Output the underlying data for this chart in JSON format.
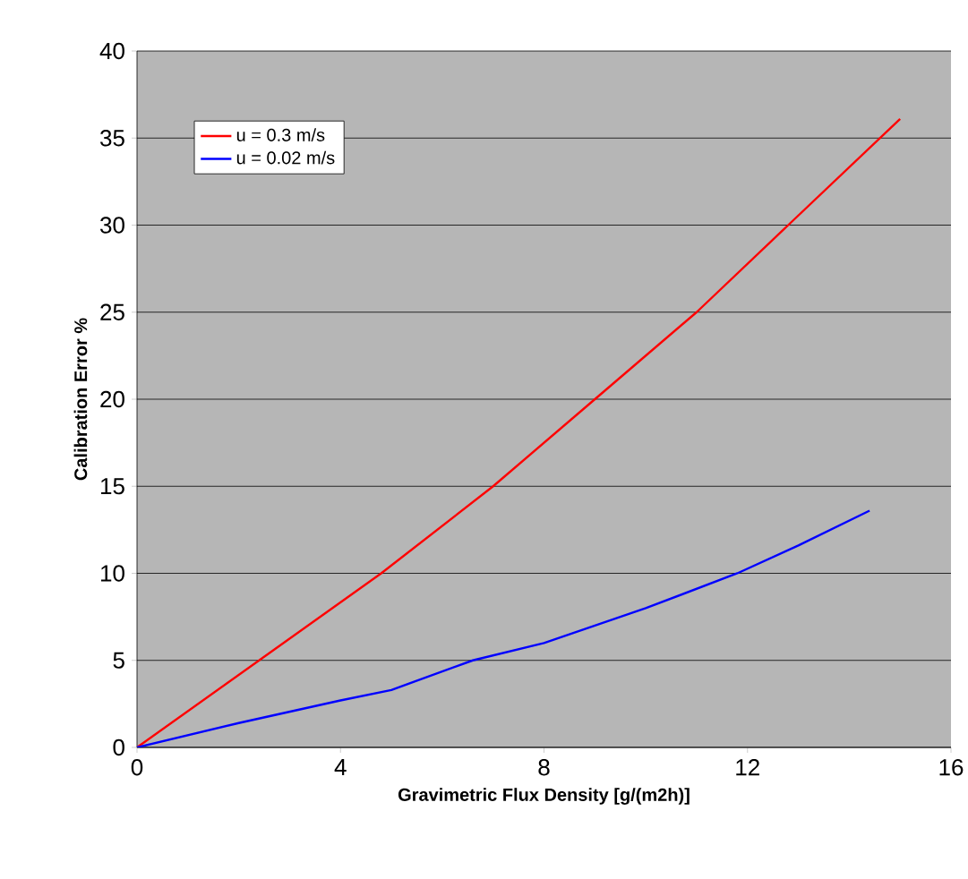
{
  "chart_data": {
    "type": "line",
    "xlabel": "Gravimetric Flux Density [g/(m2h)]",
    "ylabel": "Calibration Error %",
    "xlim": [
      0,
      16
    ],
    "xticks": [
      0,
      4,
      8,
      12,
      16
    ],
    "ylim": [
      0,
      40
    ],
    "yticks": [
      0,
      5,
      10,
      15,
      20,
      25,
      30,
      35,
      40
    ],
    "grid": "y",
    "legend": "top left",
    "marker": "none",
    "line_style": "solid",
    "series": [
      {
        "name": "u = 0.3 m/s",
        "color": "#ff0000",
        "x": [
          0,
          2.4,
          4.8,
          7,
          9,
          11,
          12.8,
          15
        ],
        "values": [
          0,
          5,
          10,
          15,
          20,
          25,
          30,
          36.1
        ]
      },
      {
        "name": "u = 0.02 m/s",
        "color": "#0000ff",
        "x": [
          0,
          2,
          4,
          5,
          6.6,
          8,
          10,
          11.8,
          13,
          14.4
        ],
        "values": [
          0,
          1.4,
          2.7,
          3.3,
          5,
          6,
          8,
          10,
          11.6,
          13.6
        ]
      }
    ]
  }
}
